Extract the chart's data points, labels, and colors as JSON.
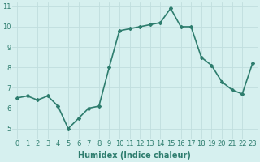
{
  "x": [
    0,
    1,
    2,
    3,
    4,
    5,
    6,
    7,
    8,
    9,
    10,
    11,
    12,
    13,
    14,
    15,
    16,
    17,
    18,
    19,
    20,
    21,
    22,
    23
  ],
  "y": [
    6.5,
    6.6,
    6.4,
    6.6,
    6.1,
    5.0,
    5.5,
    6.0,
    6.1,
    8.0,
    9.8,
    9.9,
    10.0,
    10.1,
    10.2,
    10.9,
    10.0,
    10.0,
    8.5,
    8.1,
    7.3,
    6.9,
    6.7,
    8.2
  ],
  "xlabel": "Humidex (Indice chaleur)",
  "ylim": [
    4.5,
    11.2
  ],
  "xlim": [
    -0.5,
    23.5
  ],
  "yticks": [
    5,
    6,
    7,
    8,
    9,
    10,
    11
  ],
  "xticks": [
    0,
    1,
    2,
    3,
    4,
    5,
    6,
    7,
    8,
    9,
    10,
    11,
    12,
    13,
    14,
    15,
    16,
    17,
    18,
    19,
    20,
    21,
    22,
    23
  ],
  "line_color": "#2e7d6e",
  "marker": "D",
  "marker_size": 2,
  "bg_color": "#d6f0ef",
  "grid_color": "#c0dede",
  "label_color": "#2e7d6e",
  "tick_color": "#2e7d6e",
  "line_width": 1.2,
  "xlabel_fontsize": 7,
  "tick_fontsize": 6
}
